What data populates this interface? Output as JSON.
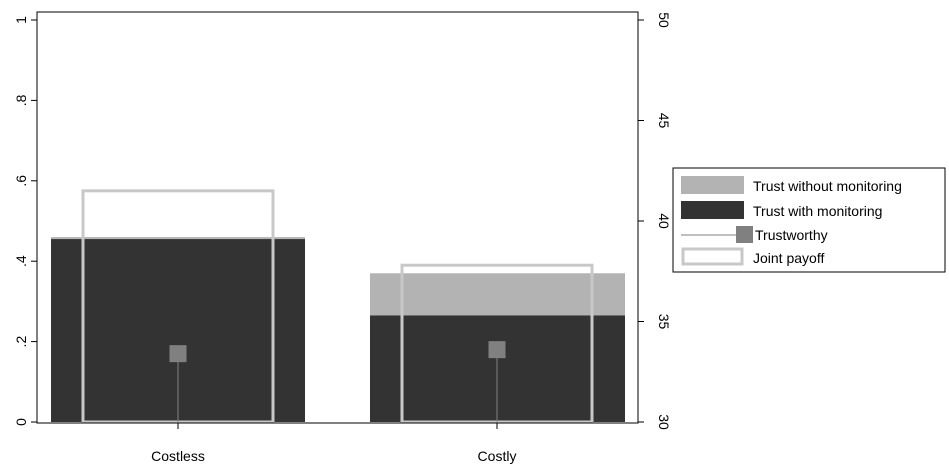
{
  "chart_data": {
    "type": "bar",
    "categories": [
      "Costless",
      "Costly"
    ],
    "left_axis": {
      "ylim": [
        0,
        1
      ],
      "ticks": [
        "0",
        ".2",
        ".4",
        ".6",
        ".8",
        "1"
      ],
      "tick_values": [
        0,
        0.2,
        0.4,
        0.6,
        0.8,
        1
      ]
    },
    "right_axis": {
      "ylim": [
        30,
        50
      ],
      "ticks": [
        "30",
        "35",
        "40",
        "45",
        "50"
      ],
      "tick_values": [
        30,
        35,
        40,
        45,
        50
      ]
    },
    "series": [
      {
        "name": "Trust without monitoring",
        "axis": "left",
        "style": "bar",
        "color": "#b3b3b3",
        "values": [
          0.46,
          0.37
        ]
      },
      {
        "name": "Trust with monitoring",
        "axis": "left",
        "style": "bar",
        "color": "#333333",
        "values": [
          0.455,
          0.265
        ]
      },
      {
        "name": "Trustworthy",
        "axis": "left",
        "style": "spike-marker",
        "color": "#808080",
        "values": [
          0.17,
          0.18
        ]
      },
      {
        "name": "Joint payoff",
        "axis": "right",
        "style": "outline-bar",
        "color": "#c8c8c8",
        "values": [
          41.5,
          37.8
        ]
      }
    ],
    "grid": false,
    "legend_position": "right"
  }
}
